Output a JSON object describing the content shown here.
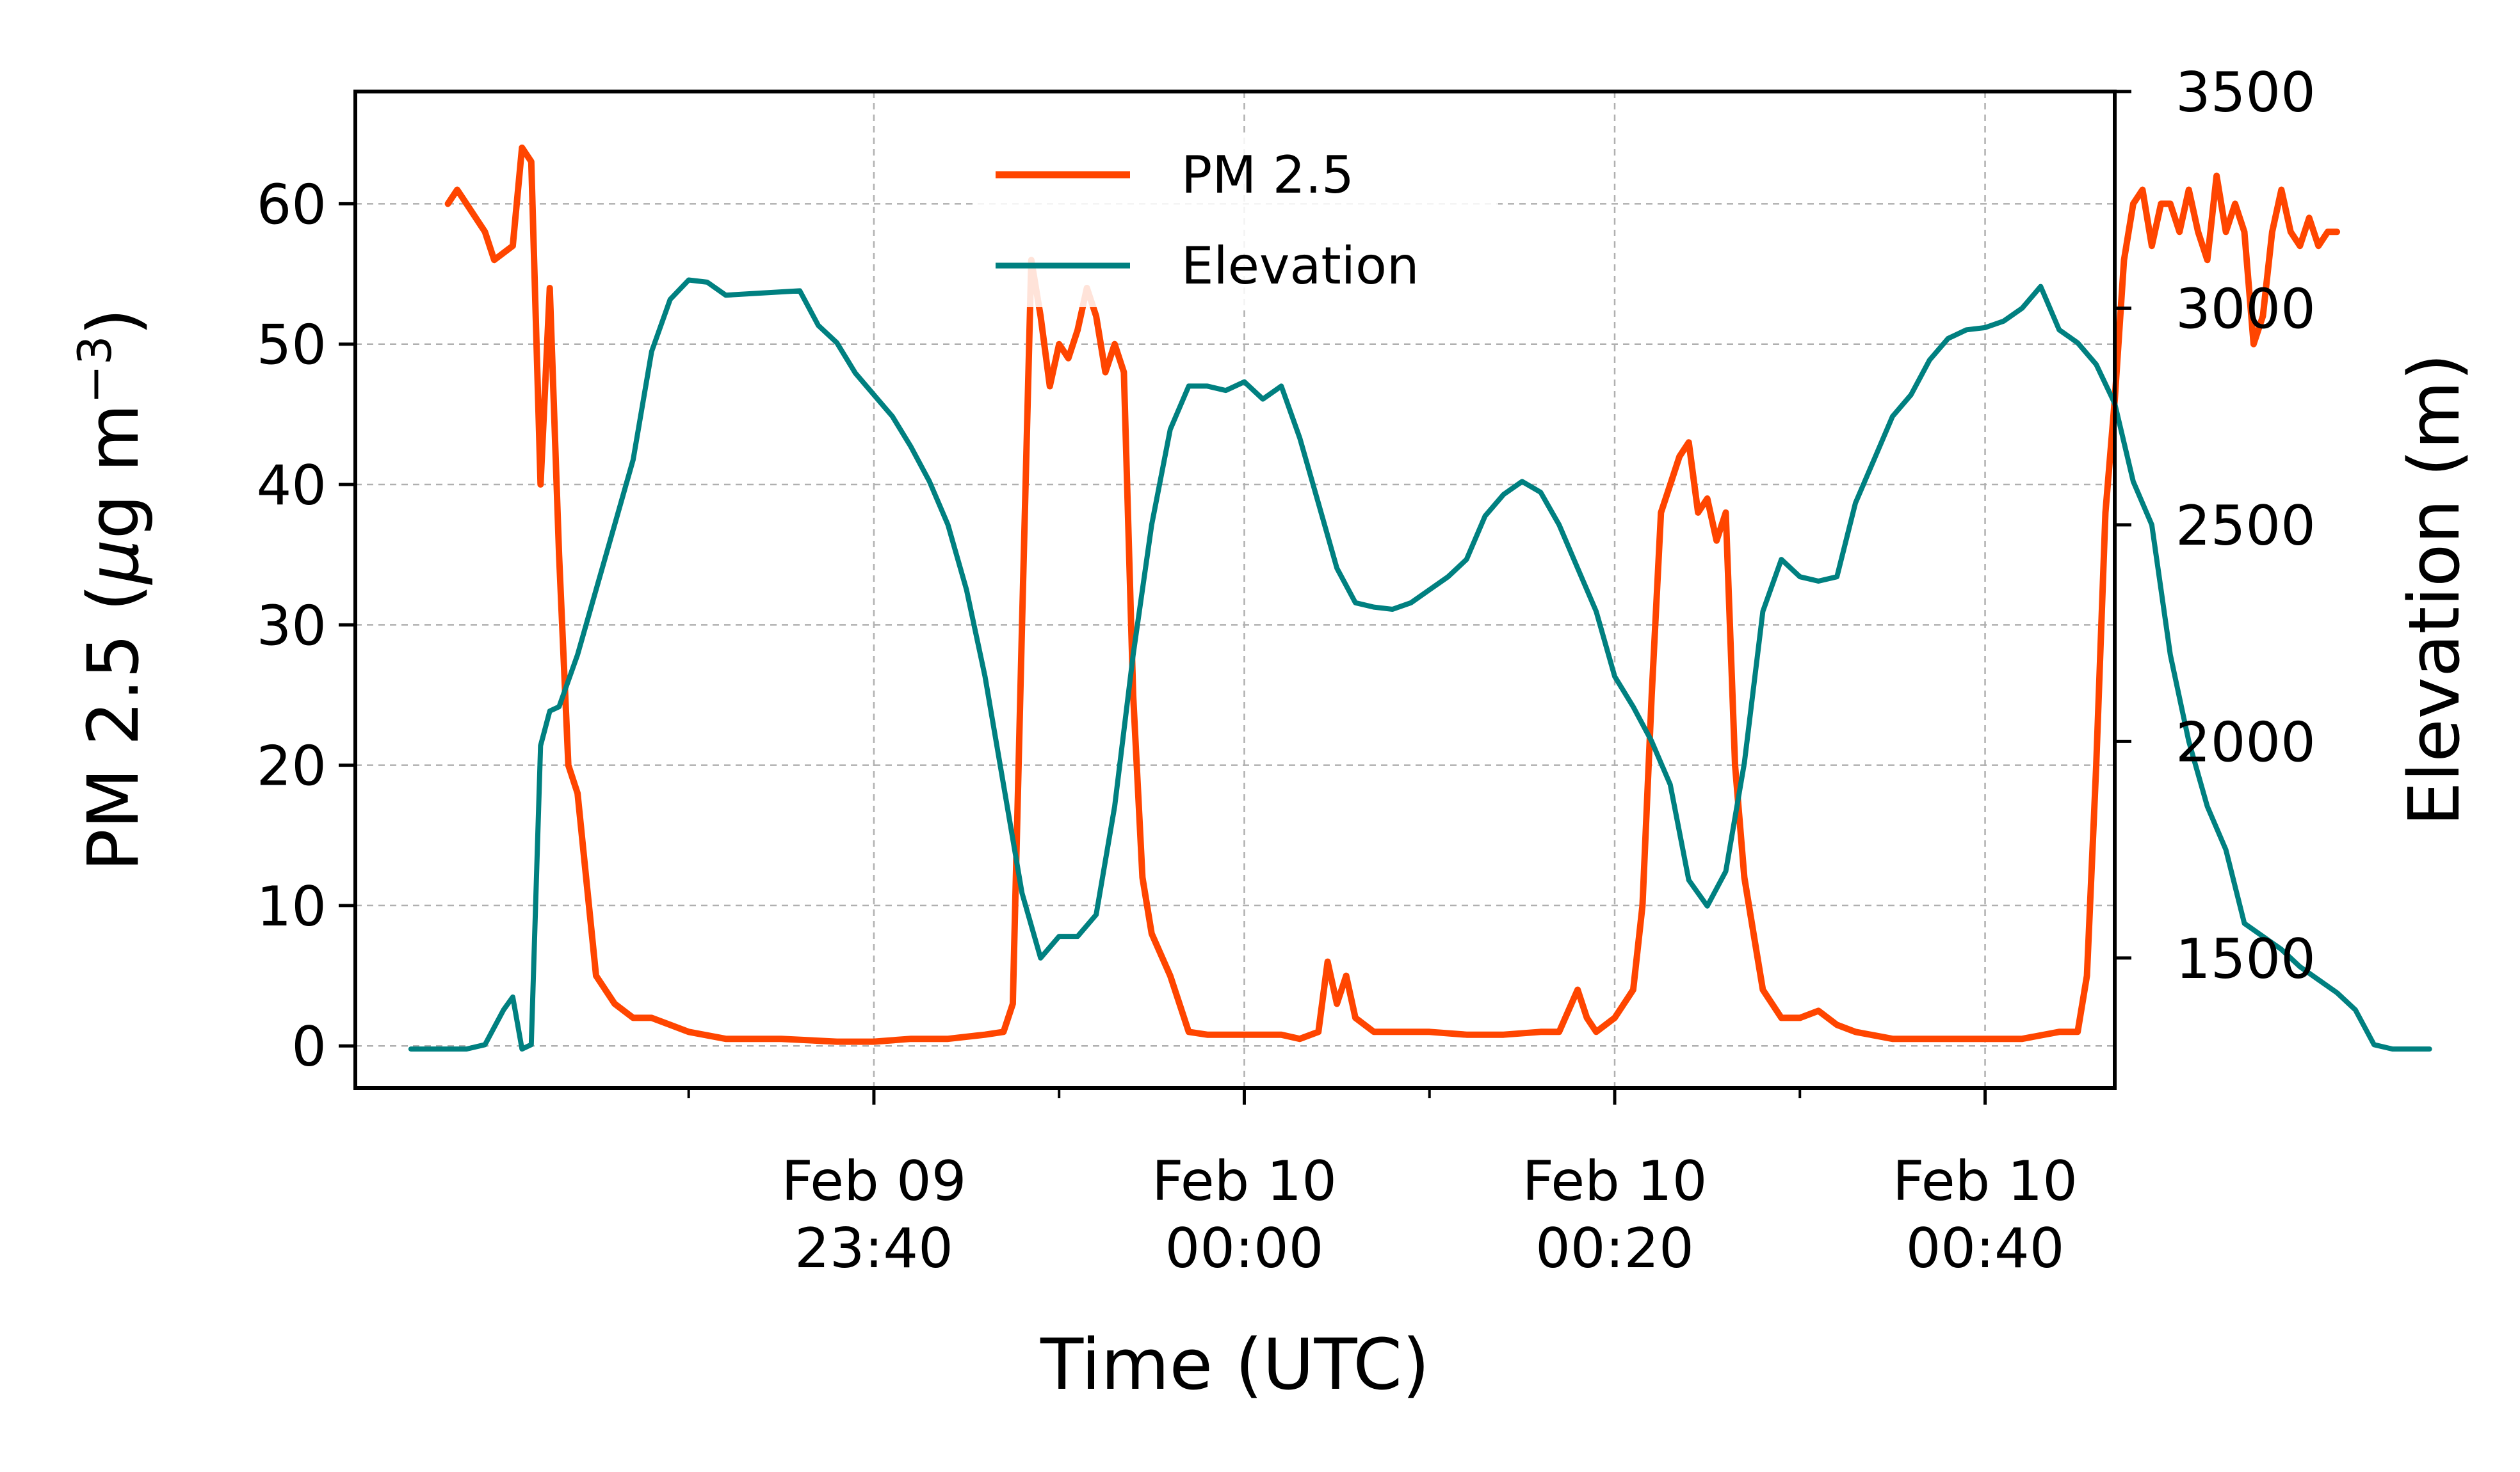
{
  "chart_data": {
    "type": "line",
    "title": "",
    "xlabel": "Time (UTC)",
    "ylabel_left": "PM 2.5 (μg m⁻³)",
    "ylabel_left_parts": {
      "prefix": "PM 2.5 (",
      "mu": "μ",
      "mid": "g m",
      "sup": "−3",
      "suffix": ")"
    },
    "ylabel_right": "Elevation (m)",
    "x_start": "Feb 09 23:15",
    "x_end": "Feb 10 00:43",
    "x_axis_range": [
      "Feb 09 23:12",
      "Feb 10 00:47"
    ],
    "x_ticks": [
      {
        "time": "Feb 09 23:40",
        "line1": "Feb 09",
        "line2": "23:40"
      },
      {
        "time": "Feb 10 00:00",
        "line1": "Feb 10",
        "line2": "00:00"
      },
      {
        "time": "Feb 10 00:20",
        "line1": "Feb 10",
        "line2": "00:20"
      },
      {
        "time": "Feb 10 00:40",
        "line1": "Feb 10",
        "line2": "00:40"
      }
    ],
    "x_minor_ticks": [
      "Feb 09 23:30",
      "Feb 09 23:50",
      "Feb 10 00:10",
      "Feb 10 00:30"
    ],
    "ylim_left": [
      -3,
      68
    ],
    "yticks_left": [
      0,
      10,
      20,
      30,
      40,
      50,
      60
    ],
    "ylim_right": [
      1200,
      3500
    ],
    "yticks_right": [
      1500,
      2000,
      2500,
      3000,
      3500
    ],
    "grid": true,
    "legend_position": "upper-center",
    "series": [
      {
        "name": "PM 2.5",
        "axis": "left",
        "color": "#ff4500",
        "points": [
          [
            "Feb 09 23:17",
            60
          ],
          [
            "Feb 09 23:17:30",
            61
          ],
          [
            "Feb 09 23:18",
            60
          ],
          [
            "Feb 09 23:19",
            58
          ],
          [
            "Feb 09 23:19:30",
            56
          ],
          [
            "Feb 09 23:20:30",
            57
          ],
          [
            "Feb 09 23:21",
            64
          ],
          [
            "Feb 09 23:21:30",
            63
          ],
          [
            "Feb 09 23:22",
            40
          ],
          [
            "Feb 09 23:22:30",
            54
          ],
          [
            "Feb 09 23:23",
            35
          ],
          [
            "Feb 09 23:23:30",
            20
          ],
          [
            "Feb 09 23:24",
            18
          ],
          [
            "Feb 09 23:25",
            5
          ],
          [
            "Feb 09 23:26",
            3
          ],
          [
            "Feb 09 23:27",
            2
          ],
          [
            "Feb 09 23:28",
            2
          ],
          [
            "Feb 09 23:29",
            1.5
          ],
          [
            "Feb 09 23:30",
            1
          ],
          [
            "Feb 09 23:32",
            0.5
          ],
          [
            "Feb 09 23:35",
            0.5
          ],
          [
            "Feb 09 23:38",
            0.3
          ],
          [
            "Feb 09 23:40",
            0.3
          ],
          [
            "Feb 09 23:42",
            0.5
          ],
          [
            "Feb 09 23:44",
            0.5
          ],
          [
            "Feb 09 23:46",
            0.8
          ],
          [
            "Feb 09 23:47",
            1
          ],
          [
            "Feb 09 23:47:30",
            3
          ],
          [
            "Feb 09 23:48",
            30
          ],
          [
            "Feb 09 23:48:30",
            56
          ],
          [
            "Feb 09 23:49",
            52
          ],
          [
            "Feb 09 23:49:30",
            47
          ],
          [
            "Feb 09 23:50",
            50
          ],
          [
            "Feb 09 23:50:30",
            49
          ],
          [
            "Feb 09 23:51",
            51
          ],
          [
            "Feb 09 23:51:30",
            54
          ],
          [
            "Feb 09 23:52",
            52
          ],
          [
            "Feb 09 23:52:30",
            48
          ],
          [
            "Feb 09 23:53",
            50
          ],
          [
            "Feb 09 23:53:30",
            48
          ],
          [
            "Feb 09 23:54",
            25
          ],
          [
            "Feb 09 23:54:30",
            12
          ],
          [
            "Feb 09 23:55",
            8
          ],
          [
            "Feb 09 23:56",
            5
          ],
          [
            "Feb 09 23:57",
            1
          ],
          [
            "Feb 09 23:58",
            0.8
          ],
          [
            "Feb 10 00:00",
            0.8
          ],
          [
            "Feb 10 00:02",
            0.8
          ],
          [
            "Feb 10 00:03",
            0.5
          ],
          [
            "Feb 10 00:04",
            1
          ],
          [
            "Feb 10 00:04:30",
            6
          ],
          [
            "Feb 10 00:05",
            3
          ],
          [
            "Feb 10 00:05:30",
            5
          ],
          [
            "Feb 10 00:06",
            2
          ],
          [
            "Feb 10 00:07",
            1
          ],
          [
            "Feb 10 00:08",
            1
          ],
          [
            "Feb 10 00:10",
            1
          ],
          [
            "Feb 10 00:12",
            0.8
          ],
          [
            "Feb 10 00:14",
            0.8
          ],
          [
            "Feb 10 00:16",
            1
          ],
          [
            "Feb 10 00:17",
            1
          ],
          [
            "Feb 10 00:18",
            4
          ],
          [
            "Feb 10 00:18:30",
            2
          ],
          [
            "Feb 10 00:19",
            1
          ],
          [
            "Feb 10 00:20",
            2
          ],
          [
            "Feb 10 00:21",
            4
          ],
          [
            "Feb 10 00:21:30",
            10
          ],
          [
            "Feb 10 00:22",
            25
          ],
          [
            "Feb 10 00:22:30",
            38
          ],
          [
            "Feb 10 00:23",
            40
          ],
          [
            "Feb 10 00:23:30",
            42
          ],
          [
            "Feb 10 00:24",
            43
          ],
          [
            "Feb 10 00:24:30",
            38
          ],
          [
            "Feb 10 00:25",
            39
          ],
          [
            "Feb 10 00:25:30",
            36
          ],
          [
            "Feb 10 00:26",
            38
          ],
          [
            "Feb 10 00:26:30",
            20
          ],
          [
            "Feb 10 00:27",
            12
          ],
          [
            "Feb 10 00:27:30",
            8
          ],
          [
            "Feb 10 00:28",
            4
          ],
          [
            "Feb 10 00:29",
            2
          ],
          [
            "Feb 10 00:30",
            2
          ],
          [
            "Feb 10 00:31",
            2.5
          ],
          [
            "Feb 10 00:32",
            1.5
          ],
          [
            "Feb 10 00:33",
            1
          ],
          [
            "Feb 10 00:35",
            0.5
          ],
          [
            "Feb 10 00:36",
            0.5
          ],
          [
            "Feb 10 00:38",
            0.5
          ],
          [
            "Feb 10 00:40",
            0.5
          ],
          [
            "Feb 10 00:42",
            0.5
          ],
          [
            "Feb 10 00:44",
            1
          ],
          [
            "Feb 10 00:45",
            1
          ],
          [
            "Feb 10 00:45:30",
            5
          ],
          [
            "Feb 10 00:46",
            20
          ],
          [
            "Feb 10 00:46:30",
            38
          ],
          [
            "Feb 10 00:47",
            46
          ],
          [
            "Feb 10 00:47:30",
            56
          ],
          [
            "Feb 10 00:48",
            60
          ],
          [
            "Feb 10 00:48:30",
            61
          ],
          [
            "Feb 10 00:49",
            57
          ],
          [
            "Feb 10 00:49:30",
            60
          ],
          [
            "Feb 10 00:50",
            60
          ],
          [
            "Feb 10 00:50:30",
            58
          ],
          [
            "Feb 10 00:51",
            61
          ],
          [
            "Feb 10 00:51:30",
            58
          ],
          [
            "Feb 10 00:52",
            56
          ],
          [
            "Feb 10 00:52:30",
            62
          ],
          [
            "Feb 10 00:53",
            58
          ],
          [
            "Feb 10 00:53:30",
            60
          ],
          [
            "Feb 10 00:54",
            58
          ],
          [
            "Feb 10 00:54:30",
            50
          ],
          [
            "Feb 10 00:55",
            52
          ],
          [
            "Feb 10 00:55:30",
            58
          ],
          [
            "Feb 10 00:56",
            61
          ],
          [
            "Feb 10 00:56:30",
            58
          ],
          [
            "Feb 10 00:57",
            57
          ],
          [
            "Feb 10 00:57:30",
            59
          ],
          [
            "Feb 10 00:58",
            57
          ],
          [
            "Feb 10 00:58:30",
            58
          ],
          [
            "Feb 10 00:59",
            58
          ]
        ]
      },
      {
        "name": "Elevation",
        "axis": "right",
        "color": "#008080",
        "points": [
          [
            "Feb 09 23:15",
            1290
          ],
          [
            "Feb 09 23:18",
            1290
          ],
          [
            "Feb 09 23:19",
            1300
          ],
          [
            "Feb 09 23:20",
            1380
          ],
          [
            "Feb 09 23:20:30",
            1410
          ],
          [
            "Feb 09 23:21",
            1290
          ],
          [
            "Feb 09 23:21:30",
            1300
          ],
          [
            "Feb 09 23:22",
            1990
          ],
          [
            "Feb 09 23:22:30",
            2070
          ],
          [
            "Feb 09 23:23",
            2080
          ],
          [
            "Feb 09 23:24",
            2200
          ],
          [
            "Feb 09 23:25",
            2350
          ],
          [
            "Feb 09 23:26",
            2500
          ],
          [
            "Feb 09 23:27",
            2650
          ],
          [
            "Feb 09 23:28",
            2900
          ],
          [
            "Feb 09 23:29",
            3020
          ],
          [
            "Feb 09 23:30",
            3065
          ],
          [
            "Feb 09 23:31",
            3060
          ],
          [
            "Feb 09 23:32",
            3030
          ],
          [
            "Feb 09 23:34",
            3035
          ],
          [
            "Feb 09 23:36",
            3040
          ],
          [
            "Feb 09 23:37",
            2960
          ],
          [
            "Feb 09 23:38",
            2920
          ],
          [
            "Feb 09 23:39",
            2850
          ],
          [
            "Feb 09 23:40",
            2800
          ],
          [
            "Feb 09 23:41",
            2750
          ],
          [
            "Feb 09 23:42",
            2680
          ],
          [
            "Feb 09 23:43",
            2600
          ],
          [
            "Feb 09 23:44",
            2500
          ],
          [
            "Feb 09 23:45",
            2350
          ],
          [
            "Feb 09 23:46",
            2150
          ],
          [
            "Feb 09 23:47",
            1900
          ],
          [
            "Feb 09 23:48",
            1650
          ],
          [
            "Feb 09 23:49",
            1500
          ],
          [
            "Feb 09 23:50",
            1550
          ],
          [
            "Feb 09 23:51",
            1550
          ],
          [
            "Feb 09 23:52",
            1600
          ],
          [
            "Feb 09 23:53",
            1850
          ],
          [
            "Feb 09 23:54",
            2200
          ],
          [
            "Feb 09 23:55",
            2500
          ],
          [
            "Feb 09 23:56",
            2720
          ],
          [
            "Feb 09 23:57",
            2820
          ],
          [
            "Feb 09 23:58",
            2820
          ],
          [
            "Feb 09 23:59",
            2810
          ],
          [
            "Feb 10 00:00",
            2830
          ],
          [
            "Feb 10 00:01",
            2790
          ],
          [
            "Feb 10 00:02",
            2820
          ],
          [
            "Feb 10 00:03",
            2700
          ],
          [
            "Feb 10 00:04",
            2550
          ],
          [
            "Feb 10 00:05",
            2400
          ],
          [
            "Feb 10 00:06",
            2320
          ],
          [
            "Feb 10 00:07",
            2310
          ],
          [
            "Feb 10 00:08",
            2305
          ],
          [
            "Feb 10 00:09",
            2320
          ],
          [
            "Feb 10 00:10",
            2350
          ],
          [
            "Feb 10 00:11",
            2380
          ],
          [
            "Feb 10 00:12",
            2420
          ],
          [
            "Feb 10 00:13",
            2520
          ],
          [
            "Feb 10 00:14",
            2570
          ],
          [
            "Feb 10 00:15",
            2600
          ],
          [
            "Feb 10 00:16",
            2575
          ],
          [
            "Feb 10 00:17",
            2500
          ],
          [
            "Feb 10 00:18",
            2400
          ],
          [
            "Feb 10 00:19",
            2300
          ],
          [
            "Feb 10 00:20",
            2150
          ],
          [
            "Feb 10 00:21",
            2080
          ],
          [
            "Feb 10 00:22",
            2000
          ],
          [
            "Feb 10 00:23",
            1900
          ],
          [
            "Feb 10 00:24",
            1680
          ],
          [
            "Feb 10 00:25",
            1620
          ],
          [
            "Feb 10 00:26",
            1700
          ],
          [
            "Feb 10 00:27",
            1950
          ],
          [
            "Feb 10 00:28",
            2300
          ],
          [
            "Feb 10 00:29",
            2420
          ],
          [
            "Feb 10 00:30",
            2380
          ],
          [
            "Feb 10 00:31",
            2370
          ],
          [
            "Feb 10 00:32",
            2380
          ],
          [
            "Feb 10 00:33",
            2550
          ],
          [
            "Feb 10 00:34",
            2650
          ],
          [
            "Feb 10 00:35",
            2750
          ],
          [
            "Feb 10 00:36",
            2800
          ],
          [
            "Feb 10 00:37",
            2880
          ],
          [
            "Feb 10 00:38",
            2930
          ],
          [
            "Feb 10 00:39",
            2950
          ],
          [
            "Feb 10 00:40",
            2955
          ],
          [
            "Feb 10 00:41",
            2970
          ],
          [
            "Feb 10 00:42",
            3000
          ],
          [
            "Feb 10 00:43",
            3050
          ],
          [
            "Feb 10 00:44",
            2950
          ],
          [
            "Feb 10 00:45",
            2920
          ],
          [
            "Feb 10 00:46",
            2870
          ],
          [
            "Feb 10 00:47",
            2780
          ],
          [
            "Feb 10 00:48",
            2600
          ],
          [
            "Feb 10 00:49",
            2500
          ],
          [
            "Feb 10 00:50",
            2200
          ],
          [
            "Feb 10 00:51",
            2000
          ],
          [
            "Feb 10 00:52",
            1850
          ],
          [
            "Feb 10 00:53",
            1750
          ],
          [
            "Feb 10 00:54",
            1580
          ],
          [
            "Feb 10 00:55",
            1550
          ],
          [
            "Feb 10 00:56",
            1520
          ],
          [
            "Feb 10 00:57",
            1480
          ],
          [
            "Feb 10 00:58",
            1450
          ],
          [
            "Feb 10 00:59",
            1420
          ],
          [
            "Feb 10 01:00",
            1380
          ],
          [
            "Feb 10 01:01",
            1300
          ],
          [
            "Feb 10 01:02",
            1290
          ],
          [
            "Feb 10 01:04",
            1290
          ]
        ]
      }
    ]
  }
}
